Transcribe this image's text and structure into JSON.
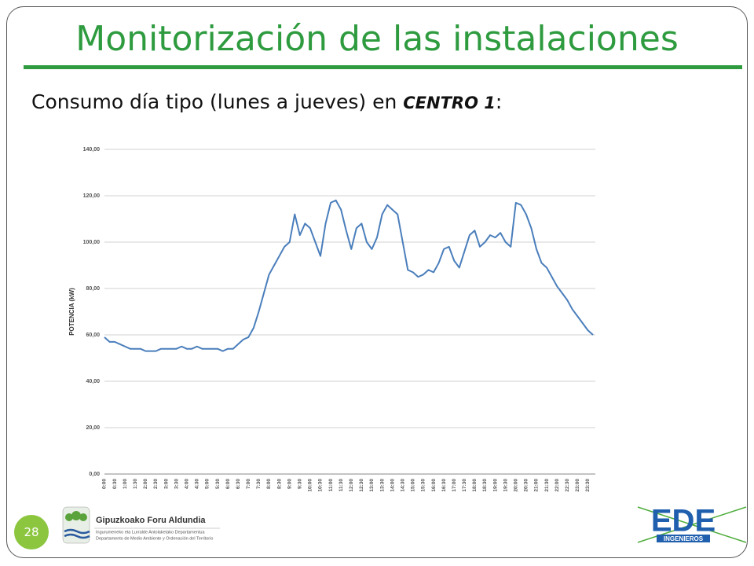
{
  "slide": {
    "title": "Monitorización de las instalaciones",
    "subtitle": {
      "text": "Consumo día tipo (lunes a jueves) en ",
      "emphasis": "CENTRO 1",
      "suffix": ":"
    },
    "page_number": 28,
    "logo_left": {
      "name": "Gipuzkoako Foru Aldundia",
      "line1": "Ingurumeneko eta Lurralde Antolaketako Departamentua",
      "line2": "Departamento de Medio Ambiente y Ordenación del Territorio"
    },
    "logo_right": {
      "name": "EDE",
      "sub": "INGENIEROS"
    }
  },
  "chart_data": {
    "type": "line",
    "y_label": "POTENCIA (kW)",
    "color": "#4a7ebb",
    "grid": true,
    "ylim": [
      0,
      140
    ],
    "yticks": [
      {
        "value": 0,
        "label": "0,00"
      },
      {
        "value": 20,
        "label": "20,00"
      },
      {
        "value": 40,
        "label": "40,00"
      },
      {
        "value": 60,
        "label": "60,00"
      },
      {
        "value": 80,
        "label": "80,00"
      },
      {
        "value": 100,
        "label": "100,00"
      },
      {
        "value": 120,
        "label": "120,00"
      },
      {
        "value": 140,
        "label": "140,00"
      }
    ],
    "categories": [
      "0:00",
      null,
      "0:30",
      null,
      "1:00",
      null,
      "1:30",
      null,
      "2:00",
      null,
      "2:30",
      null,
      "3:00",
      null,
      "3:30",
      null,
      "4:00",
      null,
      "4:30",
      null,
      "5:00",
      null,
      "5:30",
      null,
      "6:00",
      null,
      "6:30",
      null,
      "7:00",
      null,
      "7:30",
      null,
      "8:00",
      null,
      "8:30",
      null,
      "9:00",
      null,
      "9:30",
      null,
      "10:00",
      null,
      "10:30",
      null,
      "11:00",
      null,
      "11:30",
      null,
      "12:00",
      null,
      "12:30",
      null,
      "13:00",
      null,
      "13:30",
      null,
      "14:00",
      null,
      "14:30",
      null,
      "15:00",
      null,
      "15:30",
      null,
      "16:00",
      null,
      "16:30",
      null,
      "17:00",
      null,
      "17:30",
      null,
      "18:00",
      null,
      "18:30",
      null,
      "19:00",
      null,
      "19:30",
      null,
      "20:00",
      null,
      "20:30",
      null,
      "21:00",
      null,
      "21:30",
      null,
      "22:00",
      null,
      "22:30",
      null,
      "23:00",
      null,
      "23:30",
      null
    ],
    "values": [
      59,
      57,
      57,
      56,
      55,
      54,
      54,
      54,
      53,
      53,
      53,
      54,
      54,
      54,
      54,
      55,
      54,
      54,
      55,
      54,
      54,
      54,
      54,
      53,
      54,
      54,
      56,
      58,
      59,
      63,
      70,
      78,
      86,
      90,
      94,
      98,
      100,
      112,
      103,
      108,
      106,
      100,
      94,
      108,
      117,
      118,
      114,
      105,
      97,
      106,
      108,
      100,
      97,
      102,
      112,
      116,
      114,
      112,
      100,
      88,
      87,
      85,
      86,
      88,
      87,
      91,
      97,
      98,
      92,
      89,
      96,
      103,
      105,
      98,
      100,
      103,
      102,
      104,
      100,
      98,
      117,
      116,
      112,
      106,
      97,
      91,
      89,
      85,
      81,
      78,
      75,
      71,
      68,
      65,
      62,
      60
    ]
  }
}
